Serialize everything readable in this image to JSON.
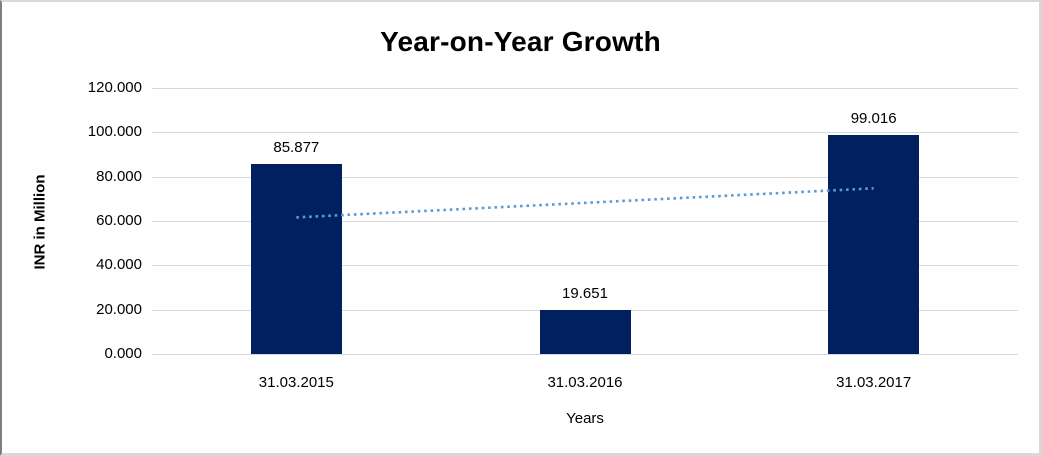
{
  "chart_data": {
    "type": "bar",
    "title": "Year-on-Year Growth",
    "xlabel": "Years",
    "ylabel": "INR in Million",
    "categories": [
      "31.03.2015",
      "31.03.2016",
      "31.03.2017"
    ],
    "values": [
      85.877,
      19.651,
      99.016
    ],
    "value_labels": [
      "85.877",
      "19.651",
      "99.016"
    ],
    "ylim": [
      0,
      120
    ],
    "ytick_step": 20,
    "ytick_labels": [
      "0.000",
      "20.000",
      "40.000",
      "60.000",
      "80.000",
      "100.000",
      "120.000"
    ],
    "grid": true,
    "legend_position": "none",
    "bar_color": "#002060",
    "gridline_color": "#d9d9d9",
    "trendline": {
      "type": "linear",
      "style": "dotted",
      "color": "#5b9bd5",
      "start_value": 61.61,
      "end_value": 74.75
    }
  }
}
